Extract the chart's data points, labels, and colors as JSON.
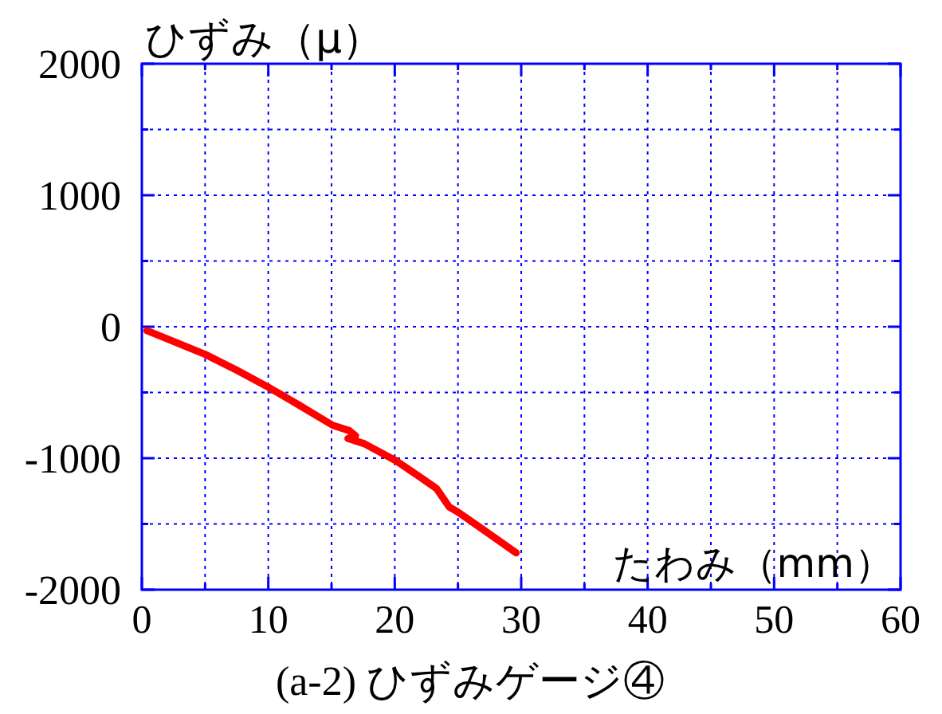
{
  "chart_data": {
    "type": "line",
    "title": "(a-2) ひずみゲージ④",
    "xlabel": "たわみ（mm）",
    "ylabel": "ひずみ（μ）",
    "x": [
      0.4,
      5,
      7.5,
      10,
      12.5,
      15.1,
      16.4,
      16.9,
      16.3,
      17.6,
      20.1,
      21.8,
      23.3,
      24.3,
      25,
      26.8,
      29.6
    ],
    "series": [
      {
        "color": "#ff0000",
        "values": [
          -30,
          -210,
          -330,
          -460,
          -600,
          -750,
          -790,
          -830,
          -850,
          -890,
          -1020,
          -1130,
          -1230,
          -1370,
          -1410,
          -1530,
          -1720
        ]
      }
    ],
    "xlim": [
      0,
      60
    ],
    "ylim": [
      -2000,
      2000
    ],
    "xticks": [
      0,
      {
        "value": 5,
        "label": null
      },
      10,
      {
        "value": 15,
        "label": null
      },
      20,
      {
        "value": 25,
        "label": null
      },
      30,
      {
        "value": 35,
        "label": null
      },
      40,
      {
        "value": 45,
        "label": null
      },
      50,
      {
        "value": 55,
        "label": null
      },
      60
    ],
    "yticks": [
      -2000,
      {
        "value": -1500,
        "label": null
      },
      -1000,
      {
        "value": -500,
        "label": null
      },
      0,
      {
        "value": 500,
        "label": null
      },
      1000,
      {
        "value": 1500,
        "label": null
      },
      2000
    ],
    "grid": true
  }
}
